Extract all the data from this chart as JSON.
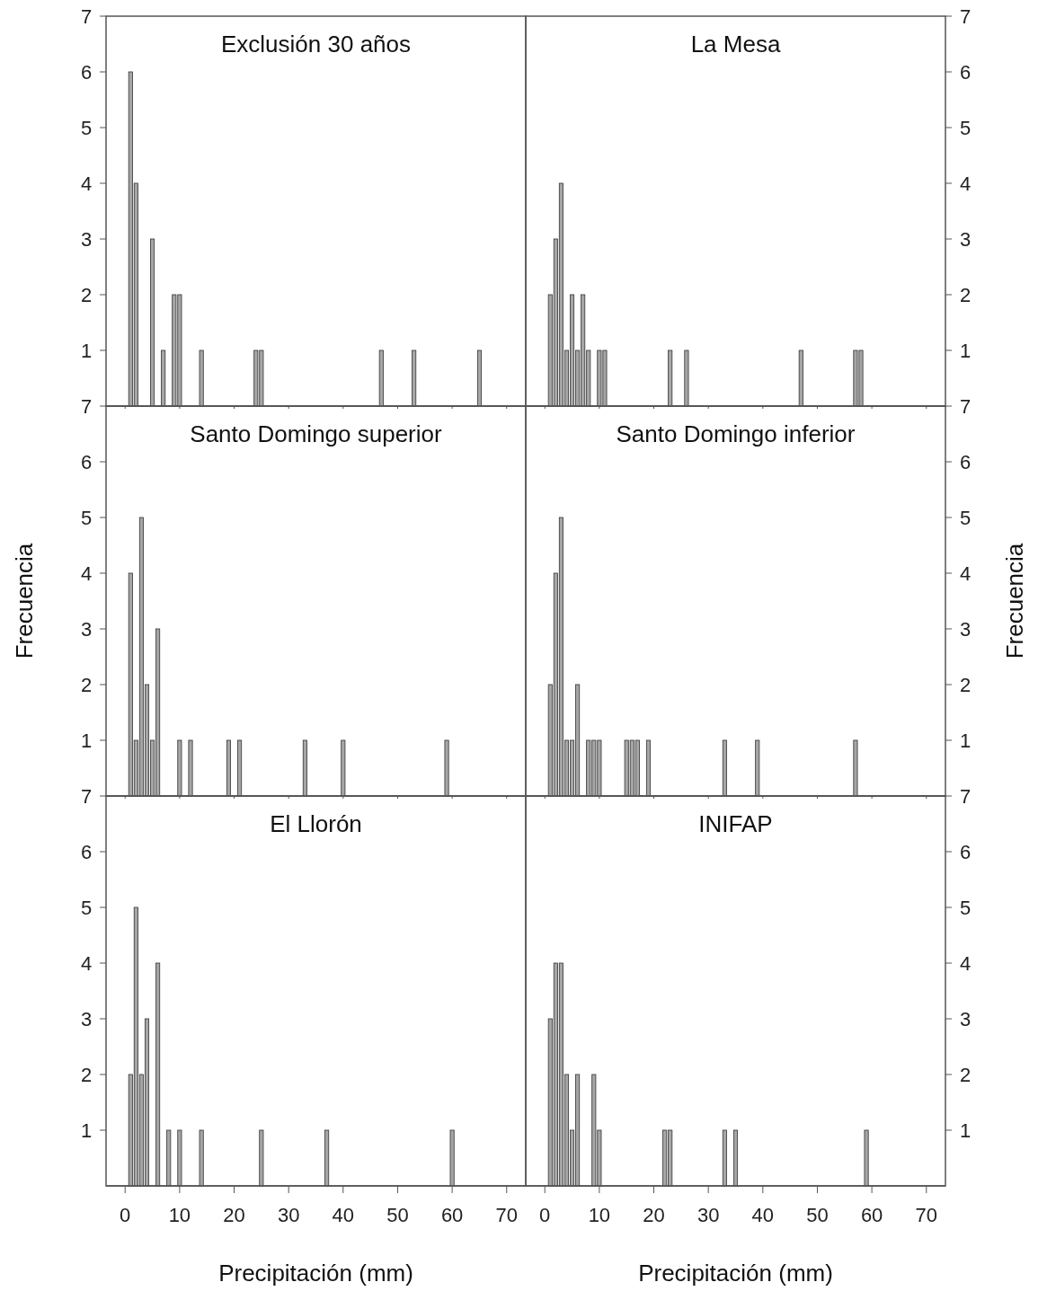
{
  "chart_data": [
    {
      "type": "bar",
      "title": "Exclusión 30 años",
      "x": [
        1,
        2,
        5,
        7,
        9,
        10,
        14,
        24,
        25,
        47,
        53,
        65
      ],
      "values": [
        6,
        4,
        3,
        1,
        2,
        2,
        1,
        1,
        1,
        1,
        1,
        1
      ],
      "color": "#a6a6a6",
      "xlim": [
        -3.5,
        73.5
      ],
      "xticks": [
        0,
        10,
        20,
        30,
        40,
        50,
        60,
        70
      ],
      "ylim": [
        0,
        7
      ],
      "yticks": [
        1,
        2,
        3,
        4,
        5,
        6,
        7
      ],
      "tick_labels": "y"
    },
    {
      "type": "bar",
      "title": "La Mesa",
      "x": [
        1,
        2,
        3,
        4,
        5,
        6,
        7,
        8,
        10,
        11,
        23,
        26,
        47,
        57,
        58
      ],
      "values": [
        2,
        3,
        4,
        1,
        2,
        1,
        2,
        1,
        1,
        1,
        1,
        1,
        1,
        1,
        1
      ],
      "color": "#a6a6a6",
      "xlim": [
        -3.5,
        73.5
      ],
      "xticks": [
        0,
        10,
        20,
        30,
        40,
        50,
        60,
        70
      ],
      "ylim": [
        0,
        7
      ],
      "yticks": [
        1,
        2,
        3,
        4,
        5,
        6,
        7
      ],
      "tick_labels": "y"
    },
    {
      "type": "bar",
      "title": "Santo Domingo superior",
      "ylabel": "Frecuencia",
      "x": [
        1,
        2,
        3,
        4,
        5,
        6,
        10,
        12,
        19,
        21,
        33,
        40,
        59
      ],
      "values": [
        4,
        1,
        5,
        2,
        1,
        3,
        1,
        1,
        1,
        1,
        1,
        1,
        1
      ],
      "color": "#a6a6a6",
      "xlim": [
        -3.5,
        73.5
      ],
      "xticks": [
        0,
        10,
        20,
        30,
        40,
        50,
        60,
        70
      ],
      "ylim": [
        0,
        7
      ],
      "yticks": [
        1,
        2,
        3,
        4,
        5,
        6,
        7
      ],
      "tick_labels": "y"
    },
    {
      "type": "bar",
      "title": "Santo Domingo inferior",
      "ylabel": "Frecuencia",
      "x": [
        1,
        2,
        3,
        4,
        5,
        6,
        8,
        9,
        10,
        15,
        16,
        17,
        19,
        33,
        39,
        57
      ],
      "values": [
        2,
        4,
        5,
        1,
        1,
        2,
        1,
        1,
        1,
        1,
        1,
        1,
        1,
        1,
        1,
        1
      ],
      "color": "#a6a6a6",
      "xlim": [
        -3.5,
        73.5
      ],
      "xticks": [
        0,
        10,
        20,
        30,
        40,
        50,
        60,
        70
      ],
      "ylim": [
        0,
        7
      ],
      "yticks": [
        1,
        2,
        3,
        4,
        5,
        6,
        7
      ],
      "tick_labels": "y"
    },
    {
      "type": "bar",
      "title": "El Llorón",
      "xlabel": "Precipitación (mm)",
      "x": [
        1,
        2,
        3,
        4,
        6,
        8,
        10,
        14,
        25,
        37,
        60
      ],
      "values": [
        2,
        5,
        2,
        3,
        4,
        1,
        1,
        1,
        1,
        1,
        1
      ],
      "color": "#a6a6a6",
      "xlim": [
        -3.5,
        73.5
      ],
      "xticks": [
        0,
        10,
        20,
        30,
        40,
        50,
        60,
        70
      ],
      "ylim": [
        0,
        7
      ],
      "yticks": [
        1,
        2,
        3,
        4,
        5,
        6,
        7
      ]
    },
    {
      "type": "bar",
      "title": "INIFAP",
      "xlabel": "Precipitación (mm)",
      "x": [
        1,
        2,
        3,
        4,
        5,
        6,
        9,
        10,
        22,
        23,
        33,
        35,
        59
      ],
      "values": [
        3,
        4,
        4,
        2,
        1,
        2,
        2,
        1,
        1,
        1,
        1,
        1,
        1
      ],
      "color": "#a6a6a6",
      "xlim": [
        -3.5,
        73.5
      ],
      "xticks": [
        0,
        10,
        20,
        30,
        40,
        50,
        60,
        70
      ],
      "ylim": [
        0,
        7
      ],
      "yticks": [
        1,
        2,
        3,
        4,
        5,
        6,
        7
      ]
    }
  ]
}
